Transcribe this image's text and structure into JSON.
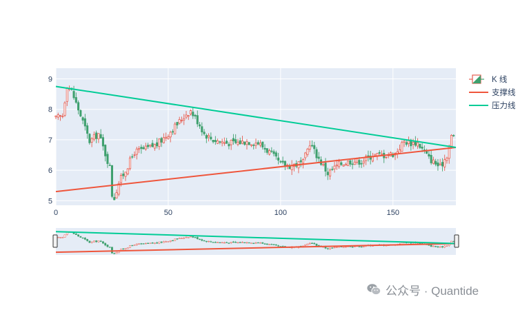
{
  "chart_data": {
    "type": "candlestick",
    "title": "",
    "xlabel": "",
    "ylabel": "",
    "xlim": [
      0,
      178
    ],
    "ylim": [
      4.85,
      9.35
    ],
    "x_ticks": [
      0,
      50,
      100,
      150
    ],
    "y_ticks": [
      5,
      6,
      7,
      8,
      9
    ],
    "grid": true,
    "legend_position": "right",
    "increasing_color": "#e65c4f",
    "decreasing_color": "#3fa06e",
    "series": [
      {
        "name": "K 线",
        "kind": "candlestick",
        "anchors_close": [
          [
            0,
            7.7
          ],
          [
            3,
            7.8
          ],
          [
            5,
            8.8
          ],
          [
            7,
            8.6
          ],
          [
            9,
            8.2
          ],
          [
            12,
            7.6
          ],
          [
            15,
            6.95
          ],
          [
            19,
            7.2
          ],
          [
            24,
            6.1
          ],
          [
            25,
            5.2
          ],
          [
            26,
            5.1
          ],
          [
            28,
            5.6
          ],
          [
            31,
            6.0
          ],
          [
            35,
            6.6
          ],
          [
            40,
            6.7
          ],
          [
            45,
            6.85
          ],
          [
            50,
            7.2
          ],
          [
            55,
            7.6
          ],
          [
            58,
            7.85
          ],
          [
            60,
            7.95
          ],
          [
            64,
            7.5
          ],
          [
            66,
            7.2
          ],
          [
            70,
            7.0
          ],
          [
            76,
            6.9
          ],
          [
            80,
            6.9
          ],
          [
            85,
            6.95
          ],
          [
            90,
            6.9
          ],
          [
            95,
            6.6
          ],
          [
            100,
            6.2
          ],
          [
            104,
            6.15
          ],
          [
            110,
            6.25
          ],
          [
            113,
            6.9
          ],
          [
            116,
            6.5
          ],
          [
            121,
            5.9
          ],
          [
            126,
            6.2
          ],
          [
            131,
            6.3
          ],
          [
            136,
            6.3
          ],
          [
            141,
            6.5
          ],
          [
            146,
            6.5
          ],
          [
            151,
            6.55
          ],
          [
            155,
            6.95
          ],
          [
            158,
            6.9
          ],
          [
            161,
            6.9
          ],
          [
            166,
            6.4
          ],
          [
            171,
            6.1
          ],
          [
            174,
            6.5
          ],
          [
            176,
            7.1
          ],
          [
            178,
            7.1
          ]
        ]
      },
      {
        "name": "支撑线",
        "kind": "line",
        "color": "#ef553b",
        "x": [
          0,
          178
        ],
        "y": [
          5.3,
          6.75
        ]
      },
      {
        "name": "压力线",
        "kind": "line",
        "color": "#00cc96",
        "x": [
          0,
          178
        ],
        "y": [
          8.75,
          6.75
        ]
      }
    ]
  },
  "legend": {
    "items": [
      "K 线",
      "支撑线",
      "压力线"
    ]
  },
  "watermark": {
    "text": "公众号 · Quantide",
    "icon": "wechat-icon"
  }
}
